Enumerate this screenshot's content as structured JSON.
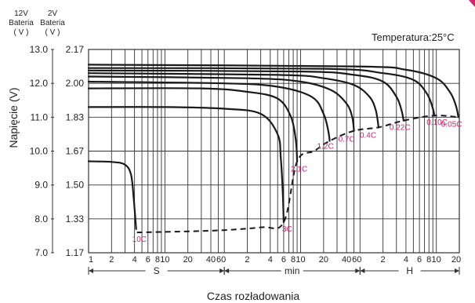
{
  "colors": {
    "rate_label": "#d6206e",
    "curve": "#1a1a1a",
    "grid": "#333333",
    "background": "#ffffff"
  },
  "header": {
    "left_axis_top": [
      "12V",
      "Bateria",
      "( V )"
    ],
    "right_axis_top": [
      "2V",
      "Bateria",
      "( V )"
    ],
    "temperature": "Temperatura:25°C"
  },
  "chart_data": {
    "type": "line",
    "ylabel": "Napięcie (V)",
    "xlabel": "Czas rozładowania",
    "yticks_12v": [
      "13.0",
      "12.0",
      "11.0",
      "10.0",
      "9.0",
      "8.0",
      "7.0"
    ],
    "yticks_2v": [
      "2.17",
      "2.00",
      "1.83",
      "1.67",
      "1.50",
      "1.33",
      "1.17"
    ],
    "ylim": [
      7.0,
      13.0
    ],
    "x_scale": "log",
    "x_units": [
      "S",
      "min",
      "H"
    ],
    "x_tick_labels": {
      "S": [
        "1",
        "2",
        "4",
        "6",
        "8",
        "10",
        "20",
        "40",
        "60"
      ],
      "min": [
        "2",
        "4",
        "6",
        "8",
        "10",
        "20",
        "40",
        "60"
      ],
      "H": [
        "2",
        "4",
        "6",
        "8",
        "10",
        "20"
      ]
    },
    "grid": true,
    "series": [
      {
        "name": "10C",
        "end_time_s": 4.3,
        "end_v": 7.6,
        "points": [
          [
            1,
            9.7
          ],
          [
            2,
            9.68
          ],
          [
            3,
            9.6
          ],
          [
            3.6,
            9.3
          ],
          [
            3.9,
            8.6
          ],
          [
            4.2,
            7.7
          ]
        ]
      },
      {
        "name": "3C",
        "end_time_s": 360,
        "end_v": 7.9,
        "points": [
          [
            1,
            11.3
          ],
          [
            10,
            11.3
          ],
          [
            60,
            11.25
          ],
          [
            180,
            11.1
          ],
          [
            300,
            10.5
          ],
          [
            330,
            9.8
          ],
          [
            350,
            8.8
          ],
          [
            360,
            7.9
          ]
        ]
      },
      {
        "name": "2.1C",
        "end_time_s": 540,
        "end_v": 9.7,
        "points": [
          [
            1,
            11.85
          ],
          [
            30,
            11.85
          ],
          [
            120,
            11.75
          ],
          [
            300,
            11.55
          ],
          [
            450,
            11.0
          ],
          [
            520,
            10.3
          ],
          [
            540,
            9.7
          ]
        ]
      },
      {
        "name": "1.2C",
        "end_time_s": 1440,
        "end_v": 10.3,
        "points": [
          [
            1,
            12.05
          ],
          [
            60,
            12.0
          ],
          [
            300,
            11.9
          ],
          [
            840,
            11.6
          ],
          [
            1200,
            11.1
          ],
          [
            1380,
            10.6
          ],
          [
            1440,
            10.3
          ]
        ]
      },
      {
        "name": "0.7C",
        "end_time_s": 3000,
        "end_v": 10.6,
        "points": [
          [
            1,
            12.2
          ],
          [
            120,
            12.15
          ],
          [
            600,
            12.05
          ],
          [
            1500,
            11.8
          ],
          [
            2400,
            11.4
          ],
          [
            2850,
            11.0
          ],
          [
            3000,
            10.6
          ]
        ]
      },
      {
        "name": "0.4C",
        "end_time_s": 6300,
        "end_v": 10.7,
        "points": [
          [
            1,
            12.3
          ],
          [
            300,
            12.25
          ],
          [
            1200,
            12.15
          ],
          [
            3000,
            11.95
          ],
          [
            4800,
            11.6
          ],
          [
            5800,
            11.2
          ],
          [
            6300,
            10.7
          ]
        ]
      },
      {
        "name": "0.22C",
        "end_time_s": 13400,
        "end_v": 10.9,
        "points": [
          [
            1,
            12.38
          ],
          [
            600,
            12.35
          ],
          [
            3000,
            12.25
          ],
          [
            7200,
            12.05
          ],
          [
            10800,
            11.6
          ],
          [
            12600,
            11.2
          ],
          [
            13400,
            10.9
          ]
        ]
      },
      {
        "name": "0.10C",
        "end_time_s": 34000,
        "end_v": 11.05,
        "points": [
          [
            1,
            12.45
          ],
          [
            1200,
            12.43
          ],
          [
            7200,
            12.3
          ],
          [
            18000,
            12.1
          ],
          [
            27000,
            11.7
          ],
          [
            32000,
            11.3
          ],
          [
            34000,
            11.05
          ]
        ]
      },
      {
        "name": "0.05C",
        "end_time_s": 70000,
        "end_v": 11.0,
        "points": [
          [
            1,
            12.55
          ],
          [
            3000,
            12.5
          ],
          [
            14400,
            12.4
          ],
          [
            36000,
            12.15
          ],
          [
            54000,
            11.75
          ],
          [
            64800,
            11.35
          ],
          [
            70000,
            11.0
          ]
        ]
      }
    ],
    "end_voltage_curve": [
      [
        4.3,
        7.6
      ],
      [
        40,
        7.65
      ],
      [
        180,
        7.75
      ],
      [
        360,
        7.9
      ],
      [
        540,
        9.7
      ],
      [
        900,
        10.0
      ],
      [
        1440,
        10.3
      ],
      [
        3000,
        10.6
      ],
      [
        6300,
        10.7
      ],
      [
        13400,
        10.9
      ],
      [
        34000,
        11.05
      ],
      [
        70000,
        11.0
      ]
    ]
  }
}
